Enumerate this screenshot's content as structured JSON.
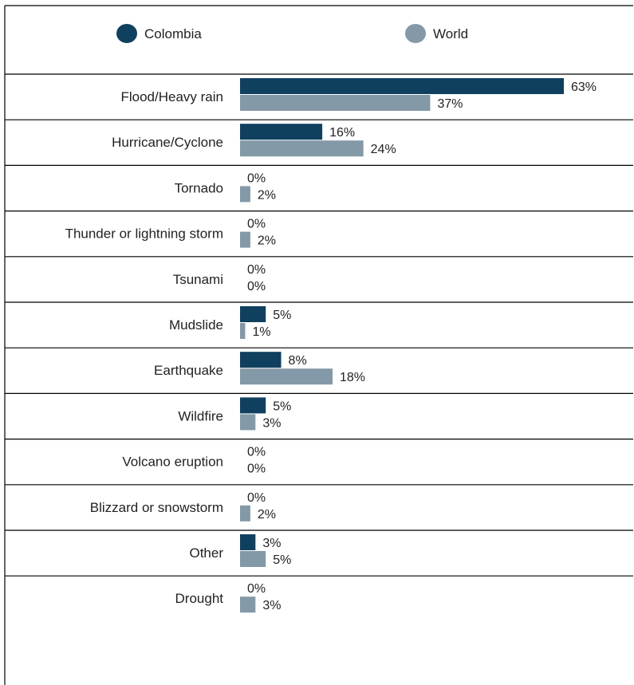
{
  "chart_data": {
    "type": "bar",
    "orientation": "horizontal",
    "categories": [
      "Flood/Heavy rain",
      "Hurricane/Cyclone",
      "Tornado",
      "Thunder or lightning storm",
      "Tsunami",
      "Mudslide",
      "Earthquake",
      "Wildfire",
      "Volcano eruption",
      "Blizzard or snowstorm",
      "Other",
      "Drought"
    ],
    "series": [
      {
        "name": "Colombia",
        "color": "#10405f",
        "values": [
          63,
          16,
          0,
          0,
          0,
          5,
          8,
          5,
          0,
          0,
          3,
          0
        ]
      },
      {
        "name": "World",
        "color": "#8399a8",
        "values": [
          37,
          24,
          2,
          2,
          0,
          1,
          18,
          3,
          0,
          2,
          5,
          3
        ]
      }
    ],
    "value_suffix": "%",
    "xlim": [
      0,
      63
    ],
    "legend_position": "top",
    "grid": false,
    "row_separators": true
  }
}
